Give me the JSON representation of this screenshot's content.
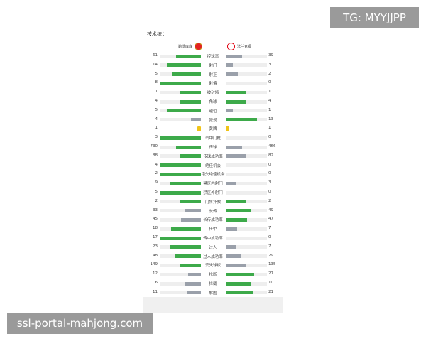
{
  "title": "技术统计",
  "home": {
    "name": "勒沃库森",
    "color": "#e32221"
  },
  "away": {
    "name": "法兰克福",
    "color": "#e1000f"
  },
  "colors": {
    "win": "#3daa4a",
    "lose": "#9aa0aa",
    "track": "#eeeeee",
    "yellow": "#f0c419"
  },
  "stats": [
    {
      "label": "控球率",
      "home": 61,
      "away": 39
    },
    {
      "label": "射门",
      "home": 14,
      "away": 3
    },
    {
      "label": "射正",
      "home": 5,
      "away": 2
    },
    {
      "label": "射偏",
      "home": 8,
      "away": 0
    },
    {
      "label": "被封堵",
      "home": 1,
      "away": 1
    },
    {
      "label": "角球",
      "home": 4,
      "away": 4
    },
    {
      "label": "越位",
      "home": 5,
      "away": 1
    },
    {
      "label": "犯规",
      "home": 4,
      "away": 13
    },
    {
      "label": "黄牌",
      "home": 1,
      "away": 1,
      "card": true
    },
    {
      "label": "击中门框",
      "home": 3,
      "away": 0
    },
    {
      "label": "传球",
      "home": 730,
      "away": 466
    },
    {
      "label": "传球成功率",
      "home": 88,
      "away": 82
    },
    {
      "label": "绝佳机会",
      "home": 4,
      "away": 0
    },
    {
      "label": "错失绝佳机会",
      "home": 2,
      "away": 0
    },
    {
      "label": "禁区内射门",
      "home": 9,
      "away": 3
    },
    {
      "label": "禁区外射门",
      "home": 5,
      "away": 0
    },
    {
      "label": "门将扑救",
      "home": 2,
      "away": 2
    },
    {
      "label": "长传",
      "home": 33,
      "away": 49
    },
    {
      "label": "长传成功率",
      "home": 45,
      "away": 47
    },
    {
      "label": "传中",
      "home": 18,
      "away": 7
    },
    {
      "label": "传中成功率",
      "home": 17,
      "away": 0
    },
    {
      "label": "过人",
      "home": 23,
      "away": 7
    },
    {
      "label": "过人成功率",
      "home": 48,
      "away": 29
    },
    {
      "label": "丢失球权",
      "home": 149,
      "away": 135
    },
    {
      "label": "抢断",
      "home": 12,
      "away": 27
    },
    {
      "label": "拦截",
      "home": 6,
      "away": 10
    },
    {
      "label": "解围",
      "home": 11,
      "away": 21
    }
  ],
  "watermarks": {
    "top": "TG: MYYJJPP",
    "bottom": "ssl-portal-mahjong.com"
  }
}
